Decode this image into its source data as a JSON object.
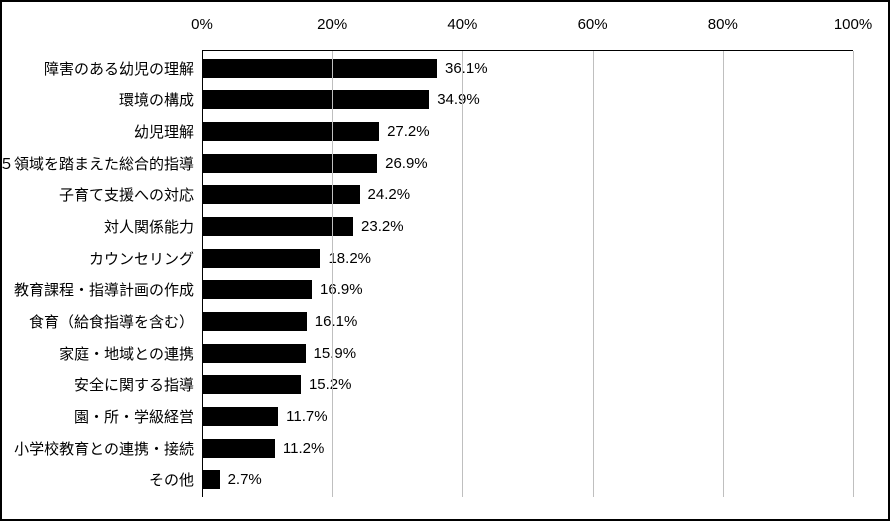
{
  "chart": {
    "type": "bar-horizontal",
    "xmin": 0,
    "xmax": 100,
    "xtick_step": 20,
    "xtick_suffix": "%",
    "bar_color": "#000000",
    "grid_color": "#bfbfbf",
    "axis_color": "#000000",
    "background_color": "#ffffff",
    "label_fontsize": 15,
    "value_suffix": "%",
    "bars": [
      {
        "label": "障害のある幼児の理解",
        "value": 36.1
      },
      {
        "label": "環境の構成",
        "value": 34.9
      },
      {
        "label": "幼児理解",
        "value": 27.2
      },
      {
        "label": "５領域を踏まえた総合的指導",
        "value": 26.9
      },
      {
        "label": "子育て支援への対応",
        "value": 24.2
      },
      {
        "label": "対人関係能力",
        "value": 23.2
      },
      {
        "label": "カウンセリング",
        "value": 18.2
      },
      {
        "label": "教育課程・指導計画の作成",
        "value": 16.9
      },
      {
        "label": "食育（給食指導を含む）",
        "value": 16.1
      },
      {
        "label": "家庭・地域との連携",
        "value": 15.9
      },
      {
        "label": "安全に関する指導",
        "value": 15.2
      },
      {
        "label": "園・所・学級経営",
        "value": 11.7
      },
      {
        "label": "小学校教育との連携・接続",
        "value": 11.2
      },
      {
        "label": "その他",
        "value": 2.7
      }
    ]
  }
}
